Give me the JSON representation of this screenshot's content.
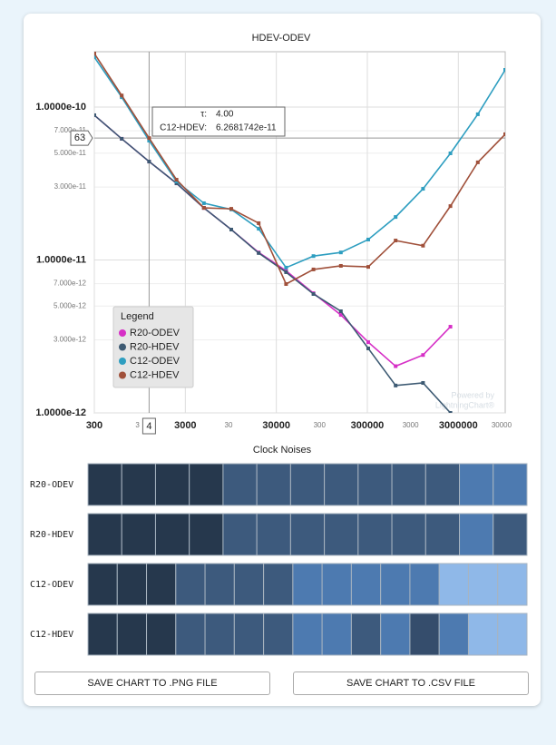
{
  "chart_data": {
    "type": "line",
    "title": "HDEV-ODEV",
    "log_x": true,
    "log_y": true,
    "grid": true,
    "x": [
      300,
      600,
      1200,
      2400,
      4800,
      9600,
      19200,
      38400,
      76800,
      153600,
      307200,
      614400,
      1228800,
      2457600,
      4915200,
      9830400
    ],
    "xlim": [
      300,
      9830400
    ],
    "xticks": [
      300,
      3000,
      30000,
      300000,
      3000000
    ],
    "x_minor_texts": [
      "3",
      "30",
      "300",
      "3000",
      "30000"
    ],
    "ylim": [
      1e-12,
      2.3e-10
    ],
    "yticks": [
      {
        "value": 1e-10,
        "label": "1.0000e-10"
      },
      {
        "value": 7e-11,
        "label": "7.000e-11"
      },
      {
        "value": 5e-11,
        "label": "5.000e-11"
      },
      {
        "value": 3e-11,
        "label": "3.000e-11"
      },
      {
        "value": 1e-11,
        "label": "1.0000e-11"
      },
      {
        "value": 7e-12,
        "label": "7.000e-12"
      },
      {
        "value": 5e-12,
        "label": "5.000e-12"
      },
      {
        "value": 3e-12,
        "label": "3.000e-12"
      },
      {
        "value": 1e-12,
        "label": "1.0000e-12"
      }
    ],
    "legend_title": "Legend",
    "legend_position": "lower-left",
    "series": [
      {
        "name": "R20-ODEV",
        "color": "#d62fc6",
        "values": [
          8.84e-11,
          6.2e-11,
          4.4e-11,
          3.17e-11,
          2.19e-11,
          1.58e-11,
          1.12e-11,
          8.5e-12,
          6.06e-12,
          4.37e-12,
          2.9e-12,
          2.02e-12,
          2.39e-12,
          3.66e-12,
          null,
          null
        ]
      },
      {
        "name": "R20-HDEV",
        "color": "#3d5a73",
        "values": [
          8.84e-11,
          6.2e-11,
          4.4e-11,
          3.17e-11,
          2.19e-11,
          1.58e-11,
          1.11e-11,
          8.32e-12,
          5.99e-12,
          4.62e-12,
          2.64e-12,
          1.51e-12,
          1.57e-12,
          1e-12,
          null,
          null
        ]
      },
      {
        "name": "C12-ODEV",
        "color": "#2e9ec0",
        "values": [
          2.12e-10,
          1.16e-10,
          6.03e-11,
          3.26e-11,
          2.35e-11,
          2.14e-11,
          1.6e-11,
          8.91e-12,
          1.06e-11,
          1.12e-11,
          1.36e-11,
          1.91e-11,
          2.92e-11,
          4.98e-11,
          8.97e-11,
          1.75e-10
        ]
      },
      {
        "name": "C12-HDEV",
        "color": "#a0503a",
        "values": [
          2.24e-10,
          1.19e-10,
          6.2681742e-11,
          3.35e-11,
          2.19e-11,
          2.16e-11,
          1.74e-11,
          6.96e-12,
          8.67e-12,
          9.15e-12,
          9.01e-12,
          1.34e-11,
          1.24e-11,
          2.25e-11,
          4.35e-11,
          6.64e-11
        ]
      }
    ],
    "tooltip": {
      "x_label": "τ:",
      "x_text": "4.00",
      "series_label": "C12-HDEV:",
      "value_text": "6.2681742e-11",
      "y_marker": "63",
      "x_marker": "4"
    },
    "watermark": [
      "Powered by",
      "LightningChart®"
    ]
  },
  "clock_noises": {
    "title": "Clock Noises",
    "rows": [
      {
        "name": "R20-ODEV",
        "cells": [
          "#26384d",
          "#26384d",
          "#26384d",
          "#26384d",
          "#3d5a7d",
          "#3d5a7d",
          "#3d5a7d",
          "#3d5a7d",
          "#3d5a7d",
          "#3d5a7d",
          "#3d5a7d",
          "#4d7ab0",
          "#4d7ab0"
        ]
      },
      {
        "name": "R20-HDEV",
        "cells": [
          "#26384d",
          "#26384d",
          "#26384d",
          "#26384d",
          "#3d5a7d",
          "#3d5a7d",
          "#3d5a7d",
          "#3d5a7d",
          "#3d5a7d",
          "#3d5a7d",
          "#3d5a7d",
          "#4d7ab0",
          "#3d5a7d"
        ]
      },
      {
        "name": "C12-ODEV",
        "cells": [
          "#26384d",
          "#26384d",
          "#26384d",
          "#3d5a7d",
          "#3d5a7d",
          "#3d5a7d",
          "#3d5a7d",
          "#4d7ab0",
          "#4d7ab0",
          "#4d7ab0",
          "#4d7ab0",
          "#4d7ab0",
          "#8fb8e8",
          "#8fb8e8",
          "#8fb8e8"
        ]
      },
      {
        "name": "C12-HDEV",
        "cells": [
          "#26384d",
          "#26384d",
          "#26384d",
          "#3d5a7d",
          "#3d5a7d",
          "#3d5a7d",
          "#3d5a7d",
          "#4d7ab0",
          "#4d7ab0",
          "#3d5a7d",
          "#4d7ab0",
          "#354d6c",
          "#4d7ab0",
          "#8fb8e8",
          "#8fb8e8"
        ]
      }
    ]
  },
  "buttons": [
    "SAVE CHART TO .PNG FILE",
    "SAVE CHART TO .CSV FILE"
  ]
}
